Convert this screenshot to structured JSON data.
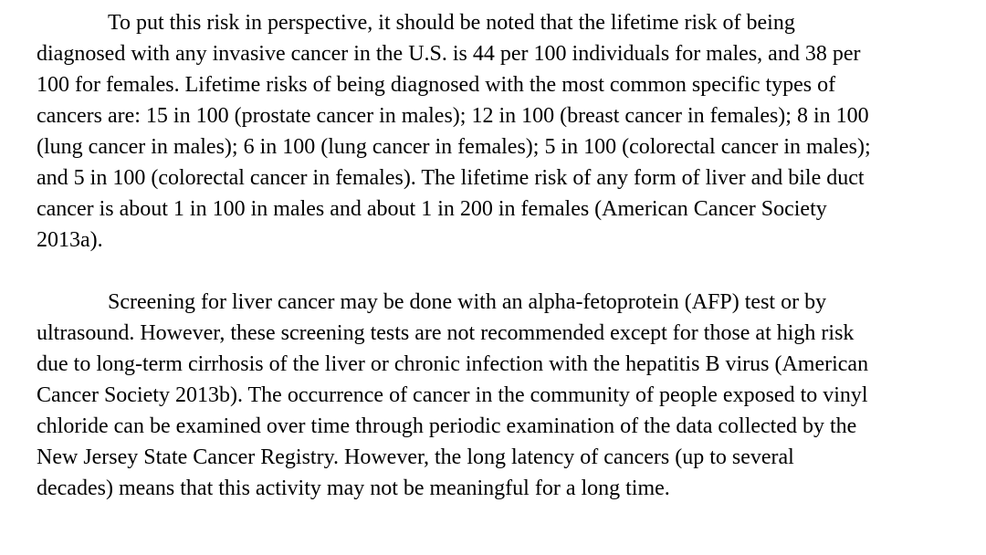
{
  "document": {
    "paragraphs": [
      {
        "lines": [
          "To put this risk in perspective, it should be noted that the lifetime risk of being",
          "diagnosed with any invasive cancer in the U.S. is 44 per 100 individuals for males, and 38 per",
          "100 for females.  Lifetime risks of being diagnosed with the most common specific types of",
          "cancers are: 15 in 100 (prostate cancer in males); 12 in 100 (breast cancer in females); 8 in 100",
          "(lung cancer in males); 6 in 100 (lung cancer in females); 5 in 100 (colorectal cancer in males);",
          "and 5 in 100 (colorectal cancer in females).  The lifetime risk of any form of liver and bile duct",
          "cancer is about 1 in 100 in males and about 1 in 200 in females (American Cancer Society",
          "2013a)."
        ]
      },
      {
        "lines": [
          "Screening for liver cancer may be done with an alpha-fetoprotein (AFP) test or by",
          "ultrasound.  However, these screening tests are not recommended except for those at high risk",
          "due to long-term cirrhosis of the liver or chronic infection with the hepatitis B virus (American",
          "Cancer Society 2013b).  The occurrence of cancer in the community of people exposed to vinyl",
          "chloride can be examined over time through periodic examination of the data collected by the",
          "New Jersey State Cancer Registry.   However, the long latency of cancers (up to several",
          "decades) means that this activity may not be meaningful for a long time."
        ]
      }
    ]
  }
}
